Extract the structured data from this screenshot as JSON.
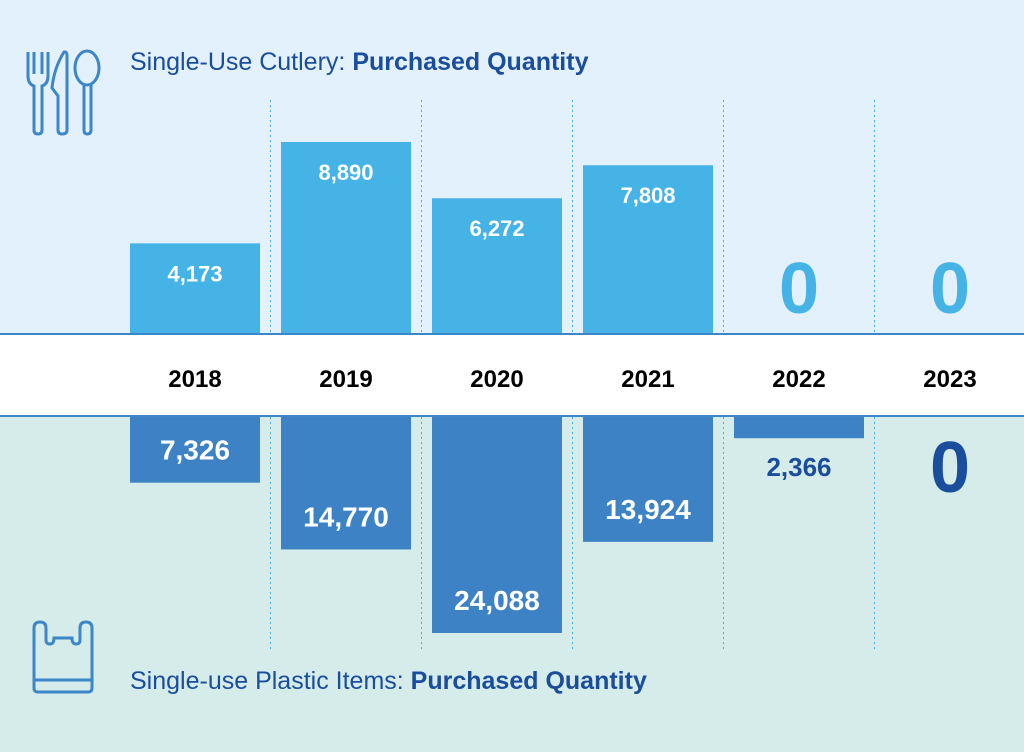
{
  "chart_data": {
    "type": "bar",
    "categories": [
      "2018",
      "2019",
      "2020",
      "2021",
      "2022",
      "2023"
    ],
    "series": [
      {
        "name": "Single-Use Cutlery: Purchased Quantity",
        "values": [
          4173,
          8890,
          6272,
          7808,
          0,
          0
        ],
        "labels": [
          "4,173",
          "8,890",
          "6,272",
          "7,808",
          "0",
          "0"
        ],
        "color": "#45b3e6",
        "direction": "up"
      },
      {
        "name": "Single-use Plastic Items: Purchased Quantity",
        "values": [
          7326,
          14770,
          24088,
          13924,
          2366,
          0
        ],
        "labels": [
          "7,326",
          "14,770",
          "24,088",
          "13,924",
          "2,366",
          "0"
        ],
        "color": "#3d82c4",
        "direction": "down"
      }
    ],
    "title": "",
    "xlabel": "",
    "ylabel": ""
  },
  "titles": {
    "top_prefix": "Single-Use Cutlery: ",
    "top_bold": "Purchased Quantity",
    "bottom_prefix": "Single-use Plastic Items: ",
    "bottom_bold": "Purchased Quantity"
  },
  "colors": {
    "dark_text": "#1a4d9c",
    "icon": "#3d86c8"
  }
}
